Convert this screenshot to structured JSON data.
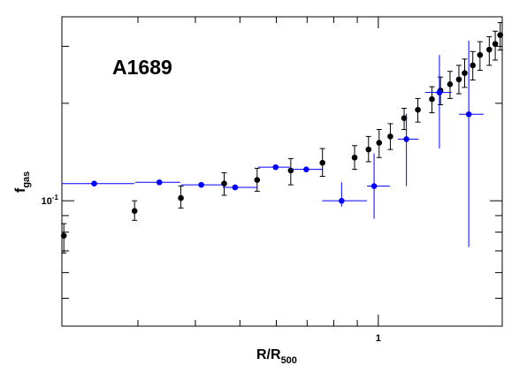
{
  "chart_data": {
    "type": "scatter",
    "title": "",
    "annotation": "A1689",
    "xlabel": "R/R",
    "xlabel_sub": "500",
    "ylabel": "f",
    "ylabel_sub": "gas",
    "x_scale": "log",
    "y_scale": "log",
    "xlim": [
      0.205,
      1.86
    ],
    "ylim": [
      0.041,
      0.37
    ],
    "x_tick_labels": [
      {
        "value": 1,
        "label": "1"
      }
    ],
    "y_tick_labels": [
      {
        "value": 0.1,
        "label": "10",
        "exp": "-1"
      }
    ],
    "grid": false,
    "legend": "none",
    "series": [
      {
        "color": "#000000",
        "points": [
          {
            "x": 0.207,
            "y": 0.078,
            "ylo": 0.069,
            "yhi": 0.085
          },
          {
            "x": 0.295,
            "y": 0.093,
            "ylo": 0.087,
            "yhi": 0.1
          },
          {
            "x": 0.372,
            "y": 0.102,
            "ylo": 0.095,
            "yhi": 0.111
          },
          {
            "x": 0.462,
            "y": 0.113,
            "ylo": 0.104,
            "yhi": 0.122
          },
          {
            "x": 0.545,
            "y": 0.116,
            "ylo": 0.107,
            "yhi": 0.126
          },
          {
            "x": 0.645,
            "y": 0.124,
            "ylo": 0.112,
            "yhi": 0.135
          },
          {
            "x": 0.756,
            "y": 0.131,
            "ylo": 0.119,
            "yhi": 0.145
          },
          {
            "x": 0.888,
            "y": 0.136,
            "ylo": 0.125,
            "yhi": 0.148
          },
          {
            "x": 0.952,
            "y": 0.144,
            "ylo": 0.132,
            "yhi": 0.158
          },
          {
            "x": 1.004,
            "y": 0.151,
            "ylo": 0.136,
            "yhi": 0.166
          },
          {
            "x": 1.062,
            "y": 0.158,
            "ylo": 0.144,
            "yhi": 0.173
          },
          {
            "x": 1.138,
            "y": 0.18,
            "ylo": 0.166,
            "yhi": 0.193
          },
          {
            "x": 1.219,
            "y": 0.191,
            "ylo": 0.175,
            "yhi": 0.207
          },
          {
            "x": 1.308,
            "y": 0.206,
            "ylo": 0.187,
            "yhi": 0.225
          },
          {
            "x": 1.365,
            "y": 0.219,
            "ylo": 0.198,
            "yhi": 0.241
          },
          {
            "x": 1.432,
            "y": 0.229,
            "ylo": 0.207,
            "yhi": 0.251
          },
          {
            "x": 1.497,
            "y": 0.237,
            "ylo": 0.214,
            "yhi": 0.262
          },
          {
            "x": 1.541,
            "y": 0.248,
            "ylo": 0.224,
            "yhi": 0.274
          },
          {
            "x": 1.605,
            "y": 0.262,
            "ylo": 0.236,
            "yhi": 0.289
          },
          {
            "x": 1.664,
            "y": 0.282,
            "ylo": 0.253,
            "yhi": 0.31
          },
          {
            "x": 1.743,
            "y": 0.293,
            "ylo": 0.262,
            "yhi": 0.321
          },
          {
            "x": 1.796,
            "y": 0.305,
            "ylo": 0.272,
            "yhi": 0.334
          },
          {
            "x": 1.841,
            "y": 0.325,
            "ylo": 0.292,
            "yhi": 0.355
          }
        ]
      },
      {
        "color": "#0000ff",
        "points": [
          {
            "x": 0.241,
            "y": 0.113,
            "xlo": 0.205,
            "xhi": 0.295
          },
          {
            "x": 0.334,
            "y": 0.114,
            "xlo": 0.296,
            "xhi": 0.371
          },
          {
            "x": 0.412,
            "y": 0.112,
            "xlo": 0.372,
            "xhi": 0.458
          },
          {
            "x": 0.488,
            "y": 0.11,
            "xlo": 0.459,
            "xhi": 0.546
          },
          {
            "x": 0.598,
            "y": 0.127,
            "xlo": 0.548,
            "xhi": 0.642
          },
          {
            "x": 0.697,
            "y": 0.125,
            "xlo": 0.647,
            "xhi": 0.758
          },
          {
            "x": 0.832,
            "y": 0.1,
            "ylo": 0.096,
            "yhi": 0.114,
            "xlo": 0.755,
            "xhi": 0.944
          },
          {
            "x": 0.979,
            "y": 0.111,
            "ylo": 0.088,
            "yhi": 0.14,
            "xlo": 0.945,
            "xhi": 1.059
          },
          {
            "x": 1.151,
            "y": 0.155,
            "ylo": 0.111,
            "yhi": 0.186,
            "xlo": 1.103,
            "xhi": 1.223
          },
          {
            "x": 1.358,
            "y": 0.216,
            "ylo": 0.145,
            "yhi": 0.282,
            "xlo": 1.264,
            "xhi": 1.443
          },
          {
            "x": 1.573,
            "y": 0.185,
            "ylo": 0.072,
            "yhi": 0.312,
            "xlo": 1.498,
            "xhi": 1.694
          }
        ]
      }
    ]
  }
}
